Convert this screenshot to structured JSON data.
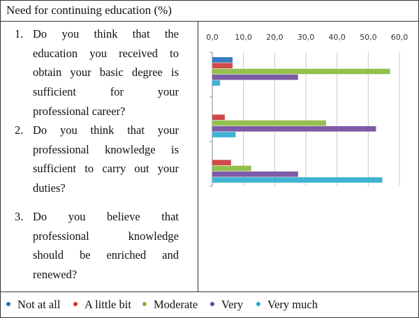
{
  "title": "Need for continuing education (%)",
  "questions": [
    {
      "num": "1.",
      "lines": [
        "Do you think that the",
        "education you received to",
        "obtain your basic degree is",
        "sufficient for your",
        "professional career?"
      ]
    },
    {
      "num": "2.",
      "lines": [
        "Do you think that your",
        "professional knowledge is",
        "sufficient to carry out your",
        "duties?"
      ]
    },
    {
      "num": "3.",
      "lines": [
        "Do you believe that",
        "professional knowledge",
        "should be enriched and",
        "renewed?"
      ]
    }
  ],
  "chart_data": {
    "type": "bar",
    "orientation": "horizontal",
    "categories": [
      "1",
      "2",
      "3"
    ],
    "xlim": [
      0,
      60
    ],
    "xticks": [
      "0,0",
      "10,0",
      "20,0",
      "30,0",
      "40,0",
      "50,0",
      "60,0"
    ],
    "grid": true,
    "series": [
      {
        "name": "Not at all",
        "color": "#3a7ac0",
        "values": [
          6.5,
          0,
          0
        ]
      },
      {
        "name": "A little bit",
        "color": "#cf4a48",
        "values": [
          6.5,
          4.0,
          6.0
        ]
      },
      {
        "name": "Moderate",
        "color": "#94bf4f",
        "values": [
          57.0,
          36.5,
          12.5
        ]
      },
      {
        "name": "Very",
        "color": "#7d5ba6",
        "values": [
          27.5,
          52.5,
          27.5
        ]
      },
      {
        "name": "Very much",
        "color": "#3fb3d3",
        "values": [
          2.5,
          7.5,
          54.5
        ]
      }
    ]
  },
  "legend": [
    {
      "label": "Not at all",
      "color": "#2b6cb3"
    },
    {
      "label": "A little bit",
      "color": "#d32f2f"
    },
    {
      "label": "Moderate",
      "color": "#7cb342"
    },
    {
      "label": "Very",
      "color": "#6a3fa0"
    },
    {
      "label": "Very much",
      "color": "#2ba8d6"
    }
  ]
}
